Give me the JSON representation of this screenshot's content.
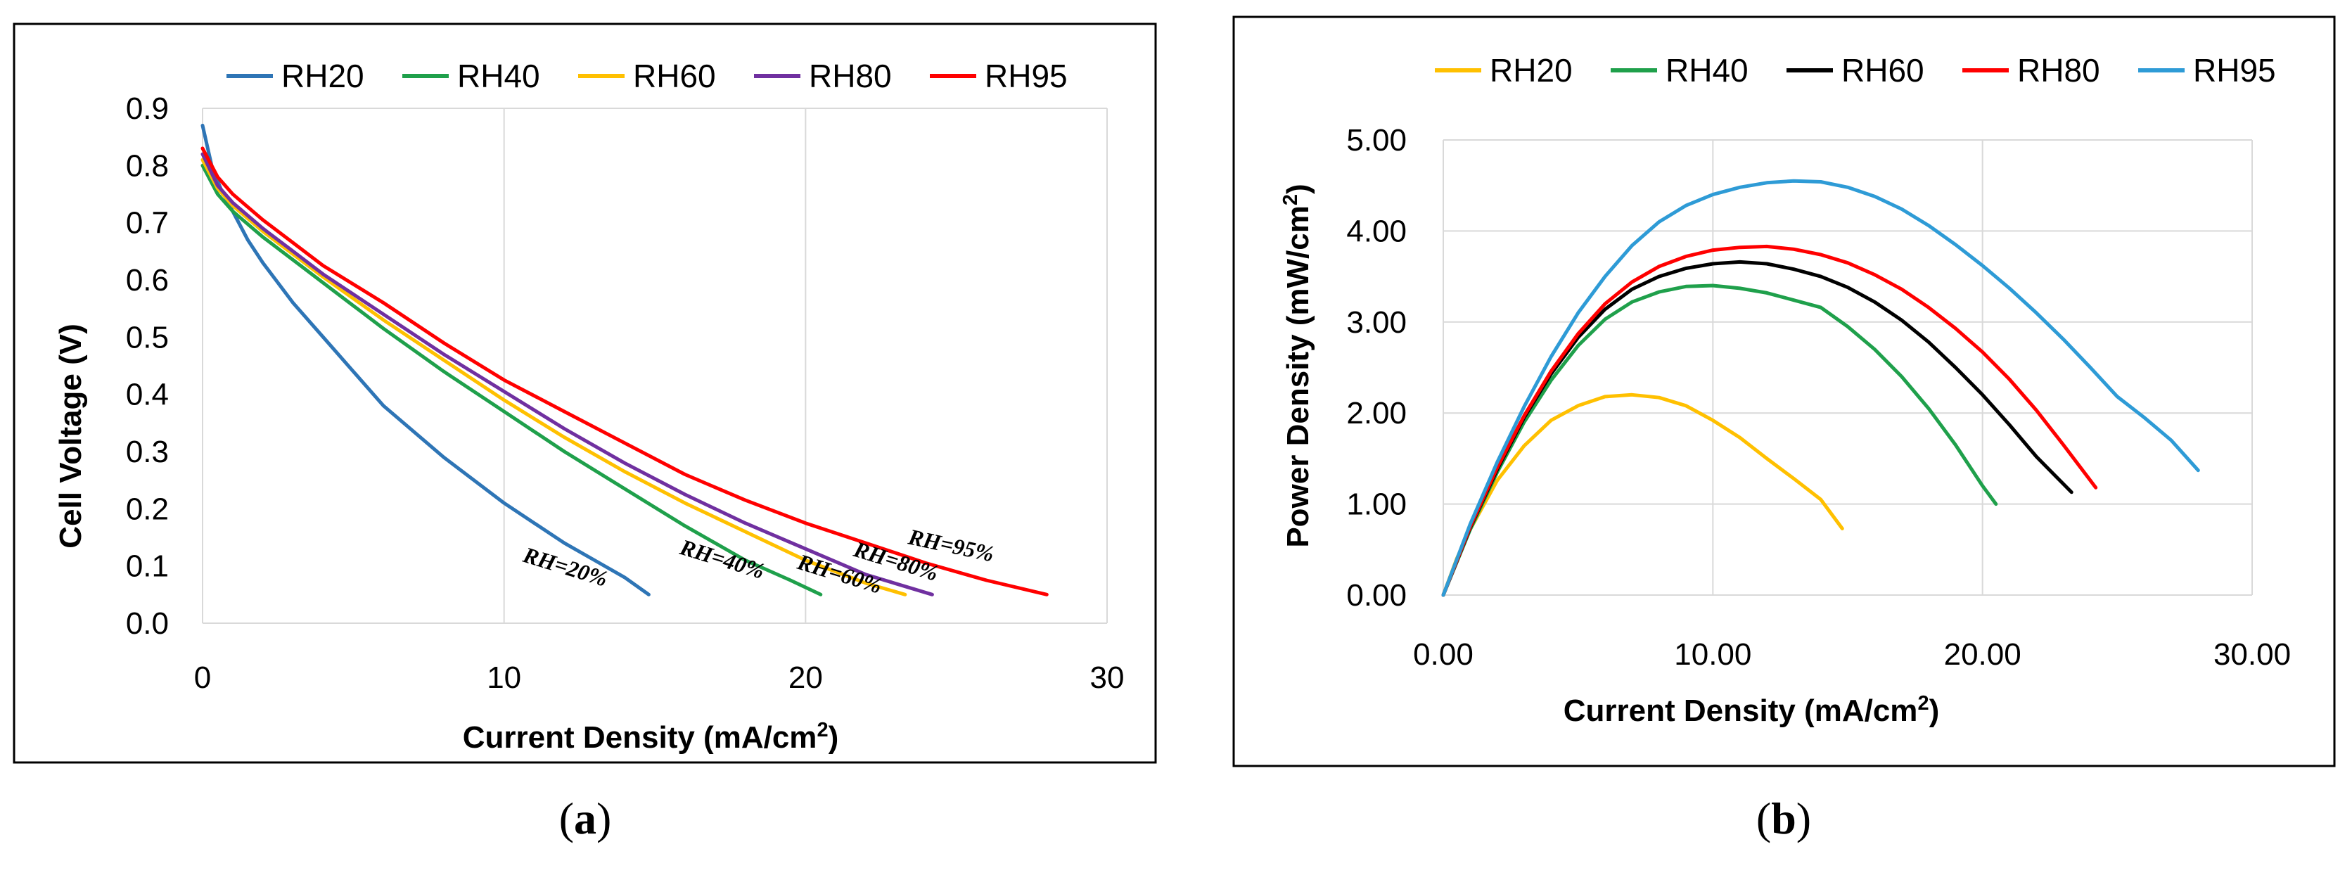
{
  "charts": [
    {
      "id": "a",
      "panel_label_open": "(",
      "panel_label_letter": "a",
      "panel_label_close": ")",
      "series_colors": {
        "RH20": "#2E75B6",
        "RH40": "#1FA04B",
        "RH60": "#FFC000",
        "RH80": "#7030A0",
        "RH95": "#FF0000"
      },
      "annotation_labels": [
        "RH=20%",
        "RH=40%",
        "RH=60%",
        "RH=80%",
        "RH=95%"
      ],
      "x_tick_labels": [
        "0",
        "10",
        "20",
        "30"
      ],
      "y_tick_labels": [
        "0.0",
        "0.1",
        "0.2",
        "0.3",
        "0.4",
        "0.5",
        "0.6",
        "0.7",
        "0.8",
        "0.9"
      ]
    },
    {
      "id": "b",
      "panel_label_open": "(",
      "panel_label_letter": "b",
      "panel_label_close": ")",
      "series_colors": {
        "RH20": "#FFC000",
        "RH40": "#1FA04B",
        "RH60": "#000000",
        "RH80": "#FF0000",
        "RH95": "#2E9BD6"
      },
      "x_tick_labels": [
        "0.00",
        "10.00",
        "20.00",
        "30.00"
      ],
      "y_tick_labels": [
        "0.00",
        "1.00",
        "2.00",
        "3.00",
        "4.00",
        "5.00"
      ]
    }
  ],
  "chart_data": [
    {
      "type": "line",
      "title": "",
      "xlabel_main": "Current Density (mA/cm",
      "xlabel_sup": "2",
      "xlabel_end": ")",
      "ylabel": "Cell Voltage (V)",
      "xlim": [
        0,
        30
      ],
      "ylim": [
        0,
        0.9
      ],
      "grid": "vertical",
      "legend": "top",
      "series": [
        {
          "name": "RH20",
          "x": [
            0,
            0.3,
            0.6,
            1,
            1.5,
            2,
            3,
            4,
            5,
            6,
            8,
            10,
            12,
            13,
            14,
            14.8
          ],
          "y": [
            0.87,
            0.8,
            0.76,
            0.72,
            0.67,
            0.63,
            0.56,
            0.5,
            0.44,
            0.38,
            0.29,
            0.21,
            0.14,
            0.11,
            0.08,
            0.05
          ]
        },
        {
          "name": "RH40",
          "x": [
            0,
            0.5,
            1,
            2,
            3,
            4,
            5,
            6,
            8,
            10,
            12,
            14,
            16,
            18,
            19.5,
            20.5
          ],
          "y": [
            0.8,
            0.75,
            0.72,
            0.675,
            0.635,
            0.595,
            0.555,
            0.515,
            0.44,
            0.37,
            0.3,
            0.235,
            0.17,
            0.11,
            0.075,
            0.05
          ]
        },
        {
          "name": "RH60",
          "x": [
            0,
            0.5,
            1,
            2,
            3,
            4,
            6,
            8,
            10,
            12,
            14,
            16,
            18,
            20,
            22,
            23.3
          ],
          "y": [
            0.81,
            0.76,
            0.73,
            0.685,
            0.645,
            0.605,
            0.53,
            0.46,
            0.39,
            0.325,
            0.265,
            0.21,
            0.16,
            0.11,
            0.07,
            0.05
          ]
        },
        {
          "name": "RH80",
          "x": [
            0,
            0.5,
            1,
            2,
            3,
            4,
            6,
            8,
            10,
            12,
            14,
            16,
            18,
            20,
            22,
            24.2
          ],
          "y": [
            0.82,
            0.765,
            0.735,
            0.69,
            0.65,
            0.61,
            0.54,
            0.47,
            0.405,
            0.34,
            0.28,
            0.225,
            0.175,
            0.13,
            0.085,
            0.05
          ]
        },
        {
          "name": "RH95",
          "x": [
            0,
            0.5,
            1,
            2,
            3,
            4,
            6,
            8,
            10,
            12,
            14,
            16,
            18,
            20,
            22,
            24,
            26,
            28
          ],
          "y": [
            0.83,
            0.78,
            0.75,
            0.705,
            0.665,
            0.625,
            0.56,
            0.49,
            0.425,
            0.37,
            0.315,
            0.26,
            0.215,
            0.175,
            0.14,
            0.105,
            0.075,
            0.05
          ]
        }
      ]
    },
    {
      "type": "line",
      "title": "",
      "xlabel_main": "Current Density (mA/cm",
      "xlabel_sup": "2",
      "xlabel_end": ")",
      "ylabel_main": "Power Density (mW/cm",
      "ylabel_sup": "2",
      "ylabel_end": ")",
      "xlim": [
        0,
        30
      ],
      "ylim": [
        0,
        5
      ],
      "grid": "both",
      "legend": "top",
      "series": [
        {
          "name": "RH20",
          "x": [
            0,
            0.5,
            1,
            2,
            3,
            4,
            5,
            6,
            7,
            8,
            9,
            10,
            11,
            12,
            13,
            14,
            14.8
          ],
          "y": [
            0,
            0.4,
            0.72,
            1.26,
            1.64,
            1.92,
            2.08,
            2.18,
            2.2,
            2.17,
            2.08,
            1.92,
            1.73,
            1.5,
            1.28,
            1.05,
            0.73
          ]
        },
        {
          "name": "RH40",
          "x": [
            0,
            1,
            2,
            3,
            4,
            5,
            6,
            7,
            8,
            9,
            10,
            11,
            12,
            13,
            14,
            15,
            16,
            17,
            18,
            19,
            20,
            20.5
          ],
          "y": [
            0,
            0.72,
            1.35,
            1.9,
            2.36,
            2.74,
            3.03,
            3.22,
            3.33,
            3.39,
            3.4,
            3.37,
            3.32,
            3.24,
            3.16,
            2.95,
            2.7,
            2.4,
            2.05,
            1.65,
            1.2,
            1.0
          ]
        },
        {
          "name": "RH60",
          "x": [
            0,
            1,
            2,
            3,
            4,
            5,
            6,
            7,
            8,
            9,
            10,
            11,
            12,
            13,
            14,
            15,
            16,
            17,
            18,
            19,
            20,
            21,
            22,
            23,
            23.3
          ],
          "y": [
            0,
            0.74,
            1.38,
            1.95,
            2.43,
            2.83,
            3.14,
            3.36,
            3.5,
            3.59,
            3.64,
            3.66,
            3.64,
            3.58,
            3.5,
            3.38,
            3.22,
            3.02,
            2.78,
            2.5,
            2.2,
            1.87,
            1.52,
            1.22,
            1.13
          ]
        },
        {
          "name": "RH80",
          "x": [
            0,
            1,
            2,
            3,
            4,
            5,
            6,
            7,
            8,
            9,
            10,
            11,
            12,
            13,
            14,
            15,
            16,
            17,
            18,
            19,
            20,
            21,
            22,
            23,
            24.2
          ],
          "y": [
            0,
            0.75,
            1.4,
            1.97,
            2.46,
            2.87,
            3.2,
            3.44,
            3.61,
            3.72,
            3.79,
            3.82,
            3.83,
            3.8,
            3.74,
            3.65,
            3.52,
            3.36,
            3.16,
            2.93,
            2.67,
            2.37,
            2.03,
            1.65,
            1.18
          ]
        },
        {
          "name": "RH95",
          "x": [
            0,
            1,
            2,
            3,
            4,
            5,
            6,
            7,
            8,
            9,
            10,
            11,
            12,
            13,
            14,
            15,
            16,
            17,
            18,
            19,
            20,
            21,
            22,
            23,
            24,
            25,
            26,
            27,
            28
          ],
          "y": [
            0,
            0.78,
            1.46,
            2.07,
            2.62,
            3.1,
            3.5,
            3.84,
            4.1,
            4.28,
            4.4,
            4.48,
            4.53,
            4.55,
            4.54,
            4.48,
            4.38,
            4.24,
            4.06,
            3.85,
            3.62,
            3.37,
            3.1,
            2.81,
            2.5,
            2.18,
            1.95,
            1.7,
            1.37
          ]
        }
      ]
    }
  ]
}
